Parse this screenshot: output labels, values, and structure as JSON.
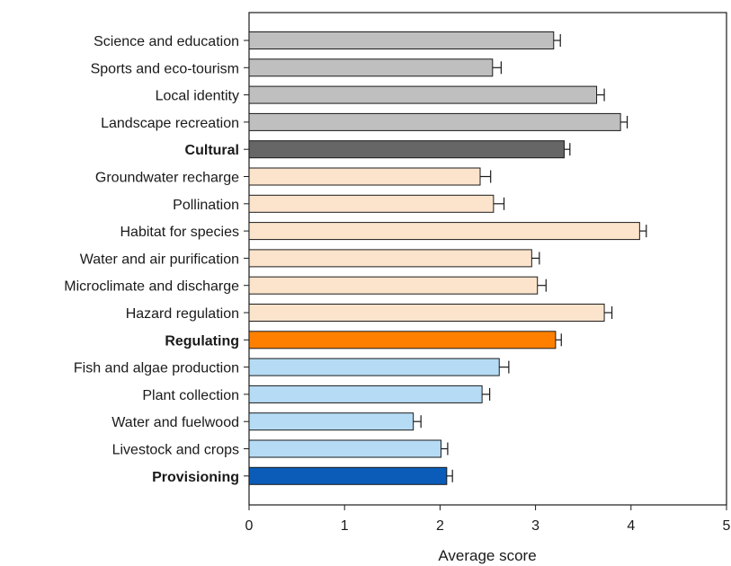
{
  "chart_data": {
    "type": "bar",
    "orientation": "horizontal",
    "title": "",
    "xlabel": "Average score",
    "ylabel": "",
    "xlim": [
      0,
      5
    ],
    "xticks": [
      0,
      1,
      2,
      3,
      4,
      5
    ],
    "grid": false,
    "legend": "none",
    "error_bars": true,
    "categories": [
      {
        "label": "Science and education",
        "value": 3.19,
        "error": 0.07,
        "color": "#bfbfbf",
        "bold": false
      },
      {
        "label": "Sports and eco-tourism",
        "value": 2.55,
        "error": 0.09,
        "color": "#bfbfbf",
        "bold": false
      },
      {
        "label": "Local identity",
        "value": 3.64,
        "error": 0.08,
        "color": "#bfbfbf",
        "bold": false
      },
      {
        "label": "Landscape recreation",
        "value": 3.89,
        "error": 0.07,
        "color": "#bfbfbf",
        "bold": false
      },
      {
        "label": "Cultural",
        "value": 3.3,
        "error": 0.06,
        "color": "#666666",
        "bold": true
      },
      {
        "label": "Groundwater recharge",
        "value": 2.42,
        "error": 0.11,
        "color": "#fce4cc",
        "bold": false
      },
      {
        "label": "Pollination",
        "value": 2.56,
        "error": 0.11,
        "color": "#fce4cc",
        "bold": false
      },
      {
        "label": "Habitat for species",
        "value": 4.09,
        "error": 0.07,
        "color": "#fce4cc",
        "bold": false
      },
      {
        "label": "Water and air purification",
        "value": 2.96,
        "error": 0.08,
        "color": "#fce4cc",
        "bold": false
      },
      {
        "label": "Microclimate and discharge",
        "value": 3.02,
        "error": 0.09,
        "color": "#fce4cc",
        "bold": false
      },
      {
        "label": "Hazard regulation",
        "value": 3.72,
        "error": 0.08,
        "color": "#fce4cc",
        "bold": false
      },
      {
        "label": "Regulating",
        "value": 3.21,
        "error": 0.06,
        "color": "#ff8000",
        "bold": true
      },
      {
        "label": "Fish and algae production",
        "value": 2.62,
        "error": 0.1,
        "color": "#b6dcf5",
        "bold": false
      },
      {
        "label": "Plant collection",
        "value": 2.44,
        "error": 0.08,
        "color": "#b6dcf5",
        "bold": false
      },
      {
        "label": "Water and fuelwood",
        "value": 1.72,
        "error": 0.08,
        "color": "#b6dcf5",
        "bold": false
      },
      {
        "label": "Livestock and crops",
        "value": 2.01,
        "error": 0.07,
        "color": "#b6dcf5",
        "bold": false
      },
      {
        "label": "Provisioning",
        "value": 2.07,
        "error": 0.06,
        "color": "#0a5cb8",
        "bold": true
      }
    ]
  }
}
